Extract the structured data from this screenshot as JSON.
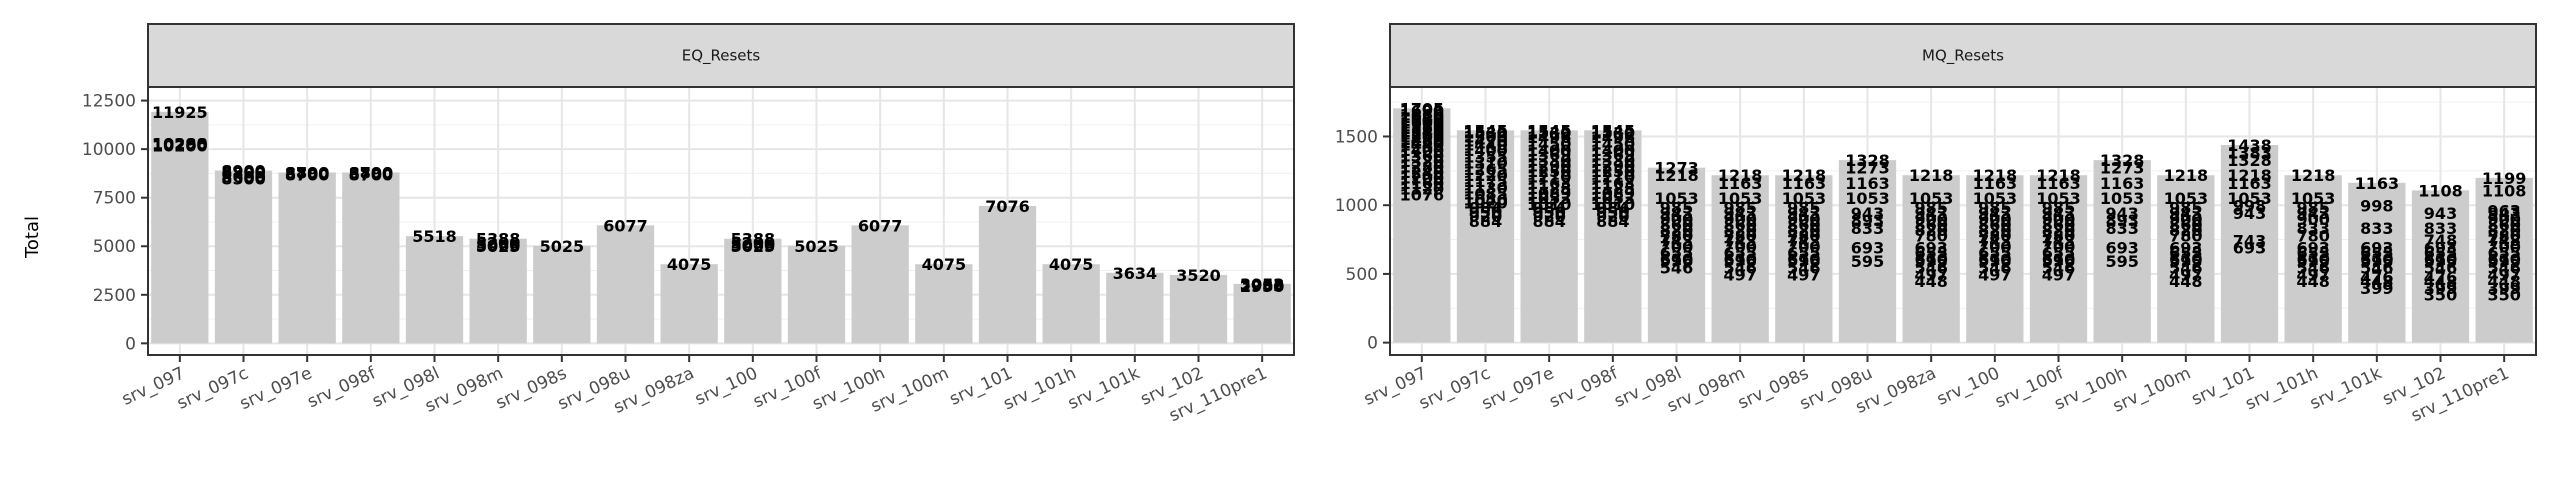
{
  "chart_data": {
    "type": "bar",
    "ylabel": "Total",
    "xlabel": "",
    "bar_color": "#cccccc",
    "strip_color": "#d9d9d9",
    "categories": [
      "srv_097",
      "srv_097c",
      "srv_097e",
      "srv_098f",
      "srv_098l",
      "srv_098m",
      "srv_098s",
      "srv_098u",
      "srv_098za",
      "srv_100",
      "srv_100f",
      "srv_100h",
      "srv_100m",
      "srv_101",
      "srv_101h",
      "srv_101k",
      "srv_102",
      "srv_110pre1"
    ],
    "panels": [
      {
        "title": "EQ_Resets",
        "ylim": [
          -600,
          13200
        ],
        "yticks": [
          0,
          2500,
          5000,
          7500,
          10000,
          12500
        ],
        "bar_values": [
          11925,
          8900,
          8800,
          8800,
          5518,
          5388,
          5025,
          6077,
          4075,
          5388,
          5025,
          6077,
          4075,
          7076,
          4075,
          3634,
          3520,
          3063
        ],
        "labels": [
          [
            "11925",
            "10290",
            "10288",
            "10200"
          ],
          [
            "8900",
            "8800",
            "8600",
            "8500"
          ],
          [
            "8800",
            "8790",
            "8700"
          ],
          [
            "8800",
            "8790",
            "8700"
          ],
          [
            "5518"
          ],
          [
            "5388",
            "5200",
            "5060",
            "5025"
          ],
          [
            "5025"
          ],
          [
            "6077"
          ],
          [
            "4075"
          ],
          [
            "5388",
            "5200",
            "5060",
            "5025"
          ],
          [
            "5025"
          ],
          [
            "6077"
          ],
          [
            "4075"
          ],
          [
            "7076"
          ],
          [
            "4075"
          ],
          [
            "3634"
          ],
          [
            "3520"
          ],
          [
            "3063",
            "3052",
            "2983",
            "2950"
          ]
        ]
      },
      {
        "title": "MQ_Resets",
        "ylim": [
          -90,
          1860
        ],
        "yticks": [
          0,
          500,
          1000,
          1500
        ],
        "bar_values": [
          1705,
          1545,
          1545,
          1545,
          1273,
          1218,
          1218,
          1328,
          1218,
          1218,
          1218,
          1328,
          1218,
          1438,
          1218,
          1163,
          1108,
          1199
        ],
        "labels": [
          [
            "1705",
            "1690",
            "1660",
            "1640",
            "1620",
            "1600",
            "1580",
            "1560",
            "1540",
            "1520",
            "1500",
            "1480",
            "1460",
            "1440",
            "1400",
            "1360",
            "1320",
            "1280",
            "1240",
            "1200",
            "1160",
            "1120",
            "1076"
          ],
          [
            "1545",
            "1530",
            "1500",
            "1470",
            "1440",
            "1400",
            "1355",
            "1310",
            "1265",
            "1220",
            "1175",
            "1130",
            "1085",
            "1040",
            "1020",
            "984",
            "950",
            "920",
            "884"
          ],
          [
            "1545",
            "1530",
            "1496",
            "1450",
            "1400",
            "1369",
            "1330",
            "1290",
            "1250",
            "1210",
            "1163",
            "1125",
            "1089",
            "1053",
            "1010",
            "984",
            "950",
            "920",
            "884"
          ],
          [
            "1545",
            "1530",
            "1496",
            "1450",
            "1400",
            "1369",
            "1330",
            "1290",
            "1250",
            "1210",
            "1163",
            "1125",
            "1089",
            "1053",
            "1010",
            "984",
            "950",
            "920",
            "884"
          ],
          [
            "1273",
            "1218",
            "1053",
            "985",
            "943",
            "900",
            "860",
            "820",
            "780",
            "743",
            "700",
            "655",
            "610",
            "596",
            "546"
          ],
          [
            "1218",
            "1163",
            "1053",
            "985",
            "943",
            "900",
            "860",
            "820",
            "780",
            "743",
            "700",
            "655",
            "610",
            "596",
            "546",
            "497"
          ],
          [
            "1218",
            "1163",
            "1053",
            "985",
            "943",
            "900",
            "860",
            "820",
            "780",
            "743",
            "700",
            "655",
            "610",
            "596",
            "546",
            "497"
          ],
          [
            "1328",
            "1273",
            "1163",
            "1053",
            "943",
            "893",
            "833",
            "693",
            "595"
          ],
          [
            "1218",
            "1053",
            "985",
            "943",
            "900",
            "860",
            "820",
            "780",
            "693",
            "655",
            "610",
            "595",
            "546",
            "497",
            "448"
          ],
          [
            "1218",
            "1163",
            "1053",
            "985",
            "943",
            "900",
            "860",
            "820",
            "780",
            "743",
            "700",
            "655",
            "610",
            "596",
            "546",
            "497"
          ],
          [
            "1218",
            "1163",
            "1053",
            "985",
            "943",
            "900",
            "860",
            "820",
            "780",
            "743",
            "700",
            "655",
            "610",
            "596",
            "546",
            "497"
          ],
          [
            "1328",
            "1273",
            "1163",
            "1053",
            "943",
            "893",
            "833",
            "693",
            "595"
          ],
          [
            "1218",
            "1053",
            "985",
            "943",
            "900",
            "860",
            "820",
            "780",
            "693",
            "655",
            "610",
            "595",
            "546",
            "497",
            "448"
          ],
          [
            "1438",
            "1383",
            "1328",
            "1218",
            "1163",
            "1053",
            "998",
            "943",
            "743",
            "693"
          ],
          [
            "1218",
            "1053",
            "985",
            "943",
            "900",
            "833",
            "780",
            "693",
            "655",
            "610",
            "595",
            "546",
            "497",
            "448"
          ],
          [
            "1163",
            "998",
            "833",
            "693",
            "655",
            "610",
            "595",
            "546",
            "476",
            "448",
            "399"
          ],
          [
            "1108",
            "943",
            "833",
            "748",
            "693",
            "655",
            "610",
            "595",
            "546",
            "476",
            "448",
            "399",
            "350"
          ],
          [
            "1199",
            "1108",
            "963",
            "943",
            "900",
            "860",
            "820",
            "780",
            "748",
            "700",
            "655",
            "610",
            "595",
            "546",
            "497",
            "448",
            "399",
            "350"
          ]
        ]
      }
    ]
  }
}
